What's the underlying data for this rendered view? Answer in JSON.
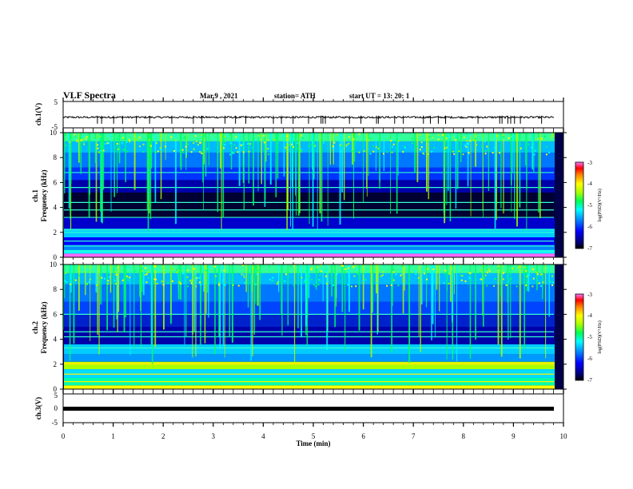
{
  "header": {
    "title": "VLF Spectra",
    "date": "Mar.9 , 2021",
    "station": "station= ATH",
    "start_ut": "start  UT =   13: 20: 1"
  },
  "colors": {
    "colormap": [
      "#000000",
      "#000066",
      "#0000ff",
      "#0088ff",
      "#00ffff",
      "#00ff66",
      "#aaff00",
      "#ffff00",
      "#ff8800",
      "#ff0000",
      "#ff66ff"
    ],
    "trace": "#000000",
    "frame": "#000000"
  },
  "chart_data": [
    {
      "type": "line",
      "panel": "waveform-ch1",
      "ylabel": "ch.1(V)",
      "ylim": [
        -5,
        5
      ],
      "yticks": [
        "5",
        "-5"
      ],
      "xlim": [
        0,
        10
      ],
      "series": [
        {
          "description_values": "noisy trace near -1 V",
          "values": [
            -1.0,
            -1.2,
            -0.9,
            -1.1,
            -1.0,
            -1.3,
            -0.8,
            -1.0,
            -1.1,
            -1.0,
            -1.4
          ]
        }
      ]
    },
    {
      "type": "heatmap",
      "panel": "spectrogram-ch1",
      "ylabel": "ch.1\nFrequency (kHz)",
      "ylabel_line1": "ch.1",
      "ylabel_line2": "Frequency (kHz)",
      "ylim": [
        0,
        10
      ],
      "yticks": [
        "0",
        "2",
        "4",
        "6",
        "8",
        "10"
      ],
      "xlim": [
        0,
        10
      ],
      "colorbar": {
        "label": "log(PSD)(V²/Hz)",
        "range": [
          -7,
          -3
        ],
        "ticks": [
          "-3",
          "-4",
          "-5",
          "-6",
          "-7"
        ]
      }
    },
    {
      "type": "heatmap",
      "panel": "spectrogram-ch2",
      "ylabel_line1": "ch.2",
      "ylabel_line2": "Frequency (kHz)",
      "ylim": [
        0,
        10
      ],
      "yticks": [
        "0",
        "2",
        "4",
        "6",
        "8",
        "10"
      ],
      "xlim": [
        0,
        10
      ],
      "colorbar": {
        "label": "log(PSD)(V²/Hz)",
        "range": [
          -7,
          -3
        ],
        "ticks": [
          "-3",
          "-4",
          "-5",
          "-6",
          "-7"
        ]
      }
    },
    {
      "type": "line",
      "panel": "waveform-ch3",
      "ylabel": "ch.3(V)",
      "ylim": [
        -5,
        5
      ],
      "yticks": [
        "5",
        "0",
        "-5"
      ],
      "xlim": [
        0,
        10
      ],
      "series": [
        {
          "values": [
            -0.5,
            -0.5,
            -0.5,
            -0.5,
            -0.5,
            -0.5,
            -0.5,
            -0.5,
            -0.5,
            -0.5,
            -0.5
          ]
        }
      ]
    }
  ],
  "xaxis": {
    "label": "Time (min)",
    "ticks": [
      "0",
      "1",
      "2",
      "3",
      "4",
      "5",
      "6",
      "7",
      "8",
      "9",
      "10"
    ],
    "range": [
      0,
      10
    ]
  }
}
